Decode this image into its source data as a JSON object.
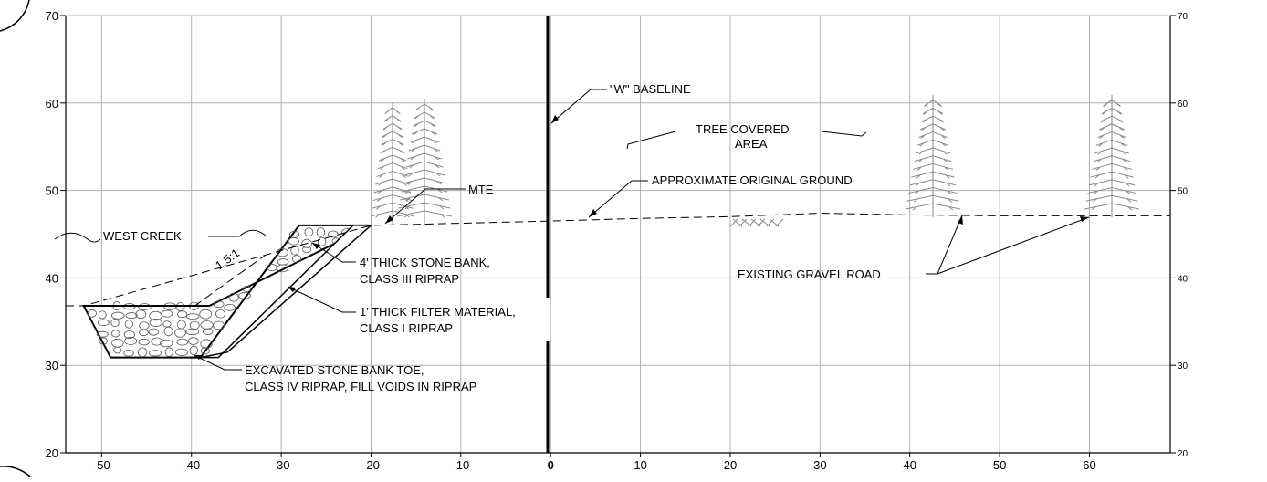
{
  "axes": {
    "x_ticks": [
      -50,
      -40,
      -30,
      -20,
      -10,
      0,
      10,
      20,
      30,
      40,
      50,
      60
    ],
    "y_ticks": [
      20,
      30,
      40,
      50,
      60,
      70
    ],
    "x_range": [
      -54,
      69
    ],
    "y_range": [
      20,
      70
    ],
    "grid": true
  },
  "ground_profile": [
    [
      -54,
      36.8
    ],
    [
      -52,
      36.8
    ],
    [
      -20,
      46
    ],
    [
      0,
      46.5
    ],
    [
      10,
      46.8
    ],
    [
      20,
      47
    ],
    [
      30,
      47.4
    ],
    [
      40,
      47.2
    ],
    [
      50,
      47.1
    ],
    [
      60,
      47.1
    ],
    [
      69,
      47.1
    ]
  ],
  "riprap_outer": [
    [
      -52,
      36.8
    ],
    [
      -49,
      30.9
    ],
    [
      -39,
      30.9
    ],
    [
      -28,
      46
    ],
    [
      -20,
      46
    ],
    [
      -38,
      36.8
    ]
  ],
  "riprap_inner": [
    [
      -39,
      30.9
    ],
    [
      -37,
      30.9
    ],
    [
      -22,
      46
    ],
    [
      -20,
      46
    ],
    [
      -36,
      31.5
    ]
  ],
  "excavation_top": [
    -52,
    36.8,
    -38,
    36.8
  ],
  "baseline_x": 0,
  "labels": {
    "baseline": "\"W\" BASELINE",
    "tree_line1": "TREE COVERED",
    "tree_line2": "AREA",
    "ground": "APPROXIMATE ORIGINAL GROUND",
    "mte": "MTE",
    "creek": "WEST CREEK",
    "slope": "1.5:1",
    "stone_line1": "4' THICK STONE BANK,",
    "stone_line2": "CLASS III RIPRAP",
    "filter_line1": "1' THICK FILTER MATERIAL,",
    "filter_line2": "CLASS I RIPRAP",
    "toe_line1": "EXCAVATED STONE BANK TOE,",
    "toe_line2": "CLASS IV RIPRAP, FILL VOIDS IN RIPRAP",
    "road": "EXISTING GRAVEL ROAD"
  },
  "colors": {
    "line": "#000000",
    "grid": "#b0b0b0",
    "tree": "#8a8a8a"
  }
}
